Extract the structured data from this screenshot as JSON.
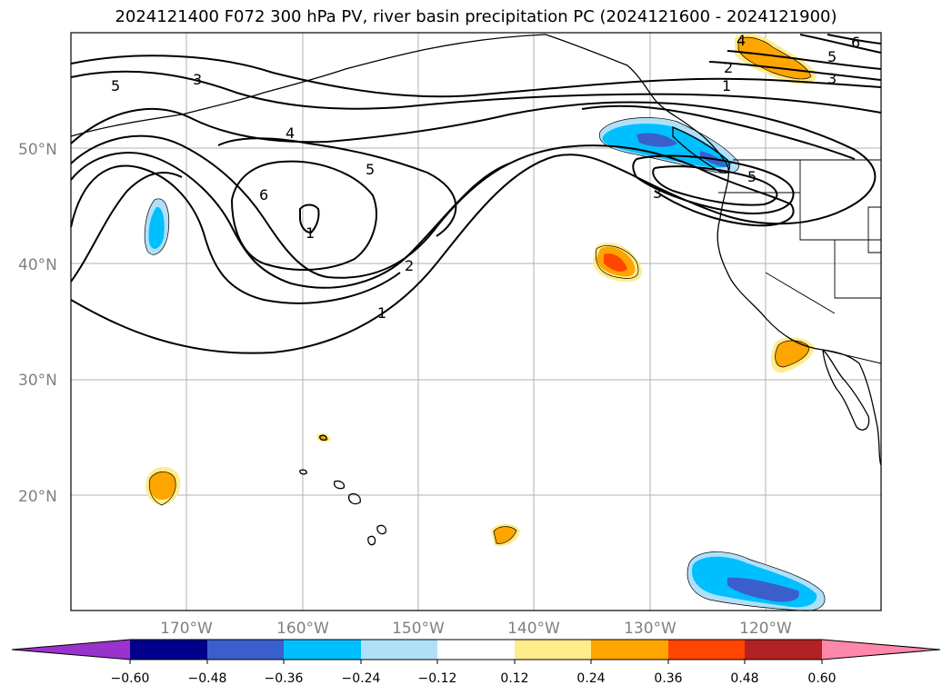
{
  "title": "2024121400 F072 300 hPa PV, river basin precipitation PC (2024121600 - 2024121900)",
  "lat_labels": [
    "50°N",
    "40°N",
    "30°N",
    "20°N"
  ],
  "lon_labels": [
    "170°W",
    "160°W",
    "150°W",
    "140°W",
    "130°W",
    "120°W"
  ],
  "contour_labels": [
    "5",
    "3",
    "4",
    "5",
    "6",
    "1",
    "2",
    "1",
    "3",
    "5",
    "4",
    "2",
    "1",
    "5",
    "6",
    "3"
  ],
  "colorbar": {
    "tick_labels": [
      "−0.60",
      "−0.48",
      "−0.36",
      "−0.24",
      "−0.12",
      "0.12",
      "0.24",
      "0.36",
      "0.48",
      "0.60"
    ],
    "colors": [
      "#9933cc",
      "#00008b",
      "#3a5fcd",
      "#00bfff",
      "#b0e0f8",
      "#ffffff",
      "#ffec8b",
      "#ffa500",
      "#ff4500",
      "#b22222",
      "#ff88aa"
    ]
  },
  "map_colors": {
    "land_outline": "#000000",
    "gridline": "#b0b0b0",
    "pv_contour": "#000000"
  }
}
